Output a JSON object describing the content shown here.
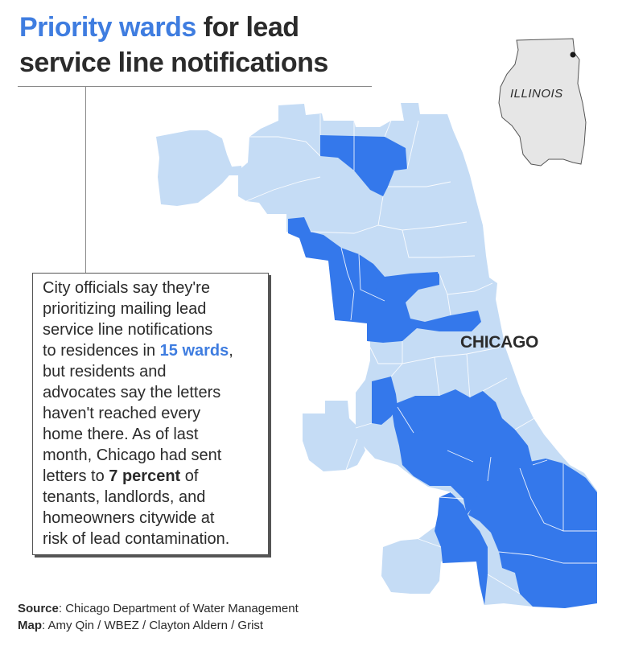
{
  "title": {
    "highlight": "Priority wards",
    "rest": " for lead",
    "line2": "service line notifications"
  },
  "callout": {
    "text_before": "City officials say they're\nprioritizing mailing lead\nservice line notifications\nto residences in ",
    "wards_highlight": "15 wards",
    "text_middle": ",\nbut residents and\nadvocates say the letters\nhaven't reached every\nhome there. As of last\nmonth, Chicago had sent\nletters to ",
    "percent_highlight": "7 percent",
    "text_after": " of\ntenants, landlords, and\nhomeowners citywide at\nrisk of lead contamination."
  },
  "map": {
    "city_label": "CHICAGO",
    "inset_state_label": "ILLINOIS",
    "colors": {
      "priority_ward": "#3478eb",
      "other_ward": "#c5dcf5",
      "ward_border": "#ffffff",
      "lake": "#ffffff",
      "inset_state_fill": "#e6e6e6",
      "inset_state_stroke": "#555555",
      "chicago_marker": "#1a1a1a"
    },
    "priority_ward_count": 15
  },
  "credits": {
    "source_label": "Source",
    "source_text": ": Chicago Department of Water Management",
    "map_label": "Map",
    "map_text": ": Amy Qin / WBEZ / Clayton Aldern / Grist"
  }
}
